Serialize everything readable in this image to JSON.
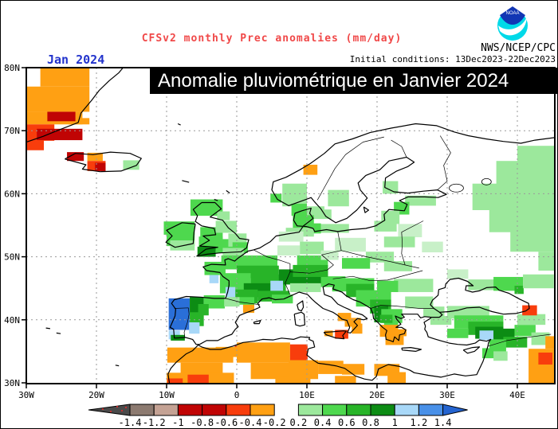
{
  "header": {
    "title": "CFSv2 monthly Prec anomalies (mm/day)",
    "title_color": "#f04848",
    "org": "NWS/NCEP/CPC",
    "date_label": "Jan 2024",
    "date_color": "#2233cc",
    "init_conditions": "Initial conditions: 13Dec2023-22Dec2023",
    "logo_label": "NOAA"
  },
  "banner": {
    "text": "Anomalie pluviométrique en Janvier 2024",
    "bg": "#000000",
    "fg": "#ffffff"
  },
  "map": {
    "lat_tick_labels": [
      "80N",
      "70N",
      "60N",
      "50N",
      "40N",
      "30N"
    ],
    "lat_tick_values": [
      80,
      70,
      60,
      50,
      40,
      30
    ],
    "lon_tick_labels": [
      "30W",
      "20W",
      "10W",
      "0",
      "10E",
      "20E",
      "30E",
      "40E"
    ],
    "lon_tick_values": [
      -30,
      -20,
      -10,
      0,
      10,
      20,
      30,
      40
    ],
    "grid_lats": [
      70,
      60,
      50,
      40
    ],
    "grid_lons": [
      -20,
      -10,
      0,
      10,
      20,
      30,
      40
    ],
    "bounds": {
      "lon_min": -30,
      "lon_max": 45.3,
      "lat_min": 30,
      "lat_max": 80
    },
    "colors": {
      "gy": "#8c7a70",
      "t": "#c4a294",
      "dr": "#c00404",
      "r": "#f83d0c",
      "o": "#ffa013",
      "g0": "#c8f0c8",
      "g1": "#9ce89c",
      "g2": "#4ed84e",
      "g3": "#28b428",
      "g4": "#0c8c14",
      "b1": "#a8d8f8",
      "b2": "#4890e8",
      "b3": "#2a6fd8",
      "arrow_left": "#4a4a4a",
      "arrow_right": "#2464d0",
      "grid": "#9a9a9a",
      "coast": "#000000"
    },
    "cells": [
      [
        "o",
        -28,
        80,
        7,
        3
      ],
      [
        "o",
        -30,
        77,
        9,
        4
      ],
      [
        "o",
        -30,
        73,
        8,
        2
      ],
      [
        "o",
        -24,
        72,
        3,
        1
      ],
      [
        "dr",
        -27,
        73,
        4,
        1.5
      ],
      [
        "r",
        -30,
        71,
        4,
        2.6
      ],
      [
        "dr",
        -28.5,
        70.3,
        6.5,
        1.8
      ],
      [
        "r",
        -30,
        68.5,
        2.5,
        1.6
      ],
      [
        "dr",
        -24.2,
        66.6,
        2.4,
        1.4
      ],
      [
        "o",
        -21.3,
        66.5,
        2.2,
        1.3
      ],
      [
        "r",
        -21.3,
        65.2,
        2.6,
        1.6
      ],
      [
        "dr",
        -20.2,
        64.9,
        1.5,
        1.3
      ],
      [
        "g1",
        -16.2,
        65.3,
        2.3,
        1.5
      ],
      [
        "o",
        9.5,
        64.6,
        2,
        1.6
      ],
      [
        "g1",
        6.5,
        61.6,
        3.5,
        3.6
      ],
      [
        "g1",
        13,
        60.6,
        3,
        2.6
      ],
      [
        "g2",
        4.8,
        60,
        1.6,
        1.4
      ],
      [
        "g1",
        11,
        57.5,
        2.5,
        1.5
      ],
      [
        "g2",
        7.8,
        58.4,
        2.2,
        1.9
      ],
      [
        "g1",
        10,
        58,
        2.5,
        2
      ],
      [
        "g2",
        8,
        56.6,
        3,
        2.1
      ],
      [
        "g1",
        12,
        55.2,
        4,
        1.4
      ],
      [
        "g2",
        9.5,
        55.3,
        2.5,
        1.6
      ],
      [
        "g1",
        7,
        54.6,
        4,
        1.4
      ],
      [
        "g1",
        20.8,
        62,
        2.2,
        2
      ],
      [
        "g2",
        -6.6,
        59.1,
        4.6,
        2.6
      ],
      [
        "g1",
        -2.8,
        57.2,
        1.8,
        1.4
      ],
      [
        "g2",
        -10.4,
        55.6,
        4.4,
        2.1
      ],
      [
        "g2",
        -10,
        53.9,
        4,
        2.2
      ],
      [
        "g1",
        -9.5,
        52.6,
        3.5,
        1.6
      ],
      [
        "g2",
        -5.2,
        54.7,
        3.2,
        2.2
      ],
      [
        "g1",
        -3,
        55.7,
        3,
        1.9
      ],
      [
        "g2",
        -5.4,
        53.2,
        3.4,
        2.2
      ],
      [
        "g4",
        -5.6,
        51.6,
        2.6,
        1.6
      ],
      [
        "g2",
        -3,
        52.8,
        4,
        2.2
      ],
      [
        "g1",
        -1.2,
        53.7,
        2.6,
        2.1
      ],
      [
        "g2",
        -0.6,
        52.3,
        2.2,
        1.7
      ],
      [
        "g1",
        -2,
        51.4,
        3,
        1.2
      ],
      [
        "g2",
        -2.2,
        50.2,
        8,
        2.2
      ],
      [
        "g2",
        -4.6,
        49.2,
        3,
        2.1
      ],
      [
        "g3",
        0,
        48.6,
        6,
        2
      ],
      [
        "g2",
        -2.4,
        47.4,
        4.4,
        3.2
      ],
      [
        "g3",
        2,
        47.2,
        5,
        2.6
      ],
      [
        "g4",
        1,
        45.8,
        5,
        2.2
      ],
      [
        "g4",
        6,
        48,
        7,
        2.4
      ],
      [
        "g3",
        -1,
        44.8,
        4,
        2.2
      ],
      [
        "b1",
        -3.9,
        47.1,
        1.3,
        1.3
      ],
      [
        "b1",
        -1.6,
        45.2,
        1.4,
        2.4
      ],
      [
        "b1",
        4.8,
        46.2,
        1.8,
        1.7
      ],
      [
        "g3",
        3,
        44.6,
        4.5,
        1.7
      ],
      [
        "g2",
        5,
        44,
        3,
        1.4
      ],
      [
        "o",
        0.9,
        42.5,
        1.6,
        1.4
      ],
      [
        "g2",
        -0.5,
        43.6,
        3,
        1.2
      ],
      [
        "b3",
        -9.7,
        43.4,
        3,
        5
      ],
      [
        "g4",
        -6.7,
        43.6,
        2,
        2.6
      ],
      [
        "g2",
        -4.7,
        43.9,
        3,
        2.1
      ],
      [
        "g1",
        -1.8,
        43.6,
        2.2,
        1.5
      ],
      [
        "g3",
        -6.7,
        41.2,
        2,
        2.2
      ],
      [
        "g3",
        -5.5,
        42.5,
        1.5,
        1.8
      ],
      [
        "b1",
        -6.8,
        39.6,
        1.5,
        1.8
      ],
      [
        "b1",
        -9.7,
        38.3,
        1.6,
        1.4
      ],
      [
        "g4",
        -9.4,
        37.6,
        2,
        0.9
      ],
      [
        "g1",
        -8.9,
        34.8,
        1.3,
        1.3
      ],
      [
        "o",
        -9.9,
        35.6,
        9.4,
        2.4
      ],
      [
        "o",
        -8,
        33.2,
        6,
        2.1
      ],
      [
        "o",
        -10,
        31.6,
        9.6,
        1.7
      ],
      [
        "r",
        -7,
        31.3,
        3,
        1.3
      ],
      [
        "r",
        -9.9,
        30.7,
        2.2,
        0.7
      ],
      [
        "r",
        -0.3,
        36,
        3,
        1.4
      ],
      [
        "o",
        -3,
        35.7,
        3,
        1.6
      ],
      [
        "o",
        0,
        36.4,
        7.6,
        3.2
      ],
      [
        "o",
        2,
        33.2,
        7,
        2.6
      ],
      [
        "o",
        5.5,
        30.9,
        5,
        1
      ],
      [
        "r",
        7.6,
        36.1,
        2.5,
        2.5
      ],
      [
        "o",
        7.4,
        33.6,
        4.2,
        3
      ],
      [
        "o",
        11.6,
        33.5,
        3.6,
        2.1
      ],
      [
        "o",
        15,
        33,
        3.2,
        1.7
      ],
      [
        "o",
        19.6,
        33,
        3.6,
        1.9
      ],
      [
        "o",
        14,
        31.1,
        3,
        1.1
      ],
      [
        "o",
        21.5,
        31.7,
        2.6,
        1.7
      ],
      [
        "g1",
        7.6,
        45.8,
        4.4,
        1.4
      ],
      [
        "g2",
        12,
        46.9,
        3.5,
        1.7
      ],
      [
        "o",
        14.4,
        41.1,
        1.9,
        1.3
      ],
      [
        "o",
        15.4,
        40.3,
        2.3,
        1.4
      ],
      [
        "o",
        16.4,
        39.4,
        1.5,
        1.6
      ],
      [
        "r",
        14,
        38.4,
        1.9,
        1.4
      ],
      [
        "o",
        12.5,
        38.3,
        1.2,
        0.9
      ],
      [
        "g0",
        6,
        54,
        3.5,
        1.6
      ],
      [
        "g0",
        5.8,
        51.8,
        3.2,
        1.6
      ],
      [
        "g1",
        9,
        52.4,
        3.4,
        2
      ],
      [
        "g2",
        8.6,
        50.2,
        4.4,
        2
      ],
      [
        "g3",
        8,
        48.7,
        5,
        1.9
      ],
      [
        "g0",
        14,
        53,
        4.4,
        2.2
      ],
      [
        "g1",
        18.4,
        50.8,
        4,
        1.7
      ],
      [
        "g2",
        15,
        49.8,
        4,
        1.7
      ],
      [
        "g1",
        21,
        49.3,
        4,
        1.6
      ],
      [
        "g0",
        12,
        51,
        2.5,
        1.5
      ],
      [
        "g1",
        24,
        59.7,
        4.4,
        1.6
      ],
      [
        "g2",
        22.4,
        58.7,
        2.2,
        2
      ],
      [
        "g1",
        20.6,
        57.3,
        2.6,
        2.1
      ],
      [
        "g1",
        19.6,
        55.7,
        3.2,
        1.7
      ],
      [
        "g0",
        23,
        55.2,
        3.4,
        2.1
      ],
      [
        "g1",
        21,
        53.2,
        4.4,
        1.7
      ],
      [
        "g0",
        26.4,
        52.4,
        3,
        1.7
      ],
      [
        "g1",
        40,
        67.6,
        5.6,
        2.6
      ],
      [
        "g1",
        37,
        65.2,
        8.6,
        4
      ],
      [
        "g1",
        33.6,
        61.6,
        11.9,
        4.2
      ],
      [
        "g1",
        36,
        57.6,
        9.5,
        3.7
      ],
      [
        "g1",
        39,
        54.2,
        6.5,
        3.4
      ],
      [
        "g1",
        43,
        50.8,
        2.5,
        3
      ],
      [
        "g1",
        33,
        46.4,
        4,
        1.7
      ],
      [
        "g2",
        36.6,
        46.8,
        4.2,
        2.2
      ],
      [
        "g3",
        39.6,
        45.4,
        1.3,
        1.3
      ],
      [
        "g1",
        40.8,
        47.2,
        4.4,
        2.2
      ],
      [
        "g0",
        30,
        48,
        3,
        1.5
      ],
      [
        "g1",
        22.4,
        46.5,
        5.6,
        2.1
      ],
      [
        "g1",
        24,
        43.7,
        4,
        1.9
      ],
      [
        "g1",
        26.6,
        42.1,
        3,
        1.6
      ],
      [
        "g2",
        20,
        46.2,
        3,
        1.8
      ],
      [
        "g2",
        13.6,
        46.6,
        6,
        2.1
      ],
      [
        "g3",
        15.6,
        45.7,
        4,
        2.1
      ],
      [
        "g2",
        17,
        44.7,
        5,
        2.6
      ],
      [
        "g3",
        19,
        43.2,
        3,
        2.2
      ],
      [
        "g4",
        19.6,
        42.2,
        2,
        2.6
      ],
      [
        "g2",
        20.6,
        41.7,
        3,
        2.2
      ],
      [
        "g2",
        21,
        39.7,
        2,
        1.7
      ],
      [
        "g3",
        20.4,
        40.8,
        1.8,
        1.3
      ],
      [
        "o",
        20.4,
        39.2,
        2.6,
        1.9
      ],
      [
        "o",
        21.2,
        37.7,
        2.6,
        1.7
      ],
      [
        "o",
        22.4,
        38.5,
        1.8,
        1.1
      ],
      [
        "g1",
        30,
        42.2,
        6,
        2
      ],
      [
        "g1",
        27.6,
        40.6,
        3,
        1.4
      ],
      [
        "g2",
        31,
        40.7,
        7,
        2.1
      ],
      [
        "g3",
        33,
        39.7,
        5,
        2.1
      ],
      [
        "g4",
        34,
        38.9,
        4,
        1.9
      ],
      [
        "b1",
        34.6,
        38.3,
        2,
        1.5
      ],
      [
        "g4",
        36.6,
        38.6,
        3,
        2
      ],
      [
        "g3",
        38,
        37.3,
        3.4,
        1.7
      ],
      [
        "g2",
        36,
        36.9,
        2.4,
        2
      ],
      [
        "g2",
        39.6,
        39.2,
        3,
        1.8
      ],
      [
        "g1",
        40,
        40.9,
        4,
        1.7
      ],
      [
        "g1",
        42,
        38,
        2.6,
        2
      ],
      [
        "g2",
        35,
        35.5,
        2,
        1.6
      ],
      [
        "g1",
        36.6,
        35,
        2,
        1.5
      ],
      [
        "r",
        40.7,
        42.3,
        2.1,
        1.6
      ],
      [
        "g2",
        30,
        38.6,
        3,
        1.5
      ],
      [
        "o",
        41.6,
        35.4,
        3.8,
        5.4
      ],
      [
        "r",
        43,
        34.8,
        2,
        1.9
      ],
      [
        "o",
        44,
        37.4,
        1.4,
        2
      ]
    ]
  },
  "colorbar": {
    "tick_labels": [
      "-1.4",
      "-1.2",
      "-1",
      "-0.8",
      "-0.6",
      "-0.4",
      "-0.2",
      "0.2",
      "0.4",
      "0.6",
      "0.8",
      "1",
      "1.2",
      "1.4"
    ],
    "segment_colors": [
      "gy",
      "t",
      "dr",
      "dr",
      "r",
      "o",
      "gap",
      "g1",
      "g2",
      "g3",
      "g4",
      "b1",
      "b2"
    ],
    "left_arrow": "arrow_left",
    "right_arrow": "arrow_right"
  }
}
